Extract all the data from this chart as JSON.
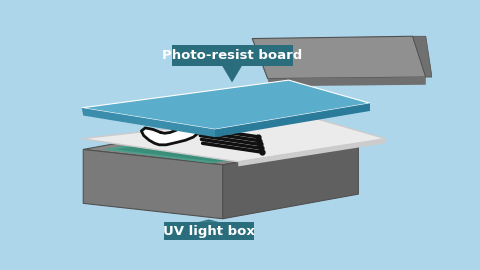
{
  "background_color": "#aed6ea",
  "box_top_color": "#878787",
  "box_front_color": "#7a7a7a",
  "box_right_color": "#606060",
  "box_edge_color": "#505050",
  "teal_color": "#4a9e8a",
  "teal_inner_color": "#3a8e7a",
  "blue_board_top": "#5aaecc",
  "blue_board_front": "#3a8eac",
  "blue_board_right": "#2a7a9a",
  "paper_color": "#ebebeb",
  "paper_edge_color": "#cccccc",
  "lid_top_color": "#909090",
  "lid_right_color": "#707070",
  "lid_edge_color": "#505050",
  "trace_color": "#111111",
  "trace_fill": "#ffffff",
  "label_bg": "#2a6e7e",
  "label_text": "#ffffff",
  "label1": "Photo-resist board",
  "label2": "UV light box"
}
